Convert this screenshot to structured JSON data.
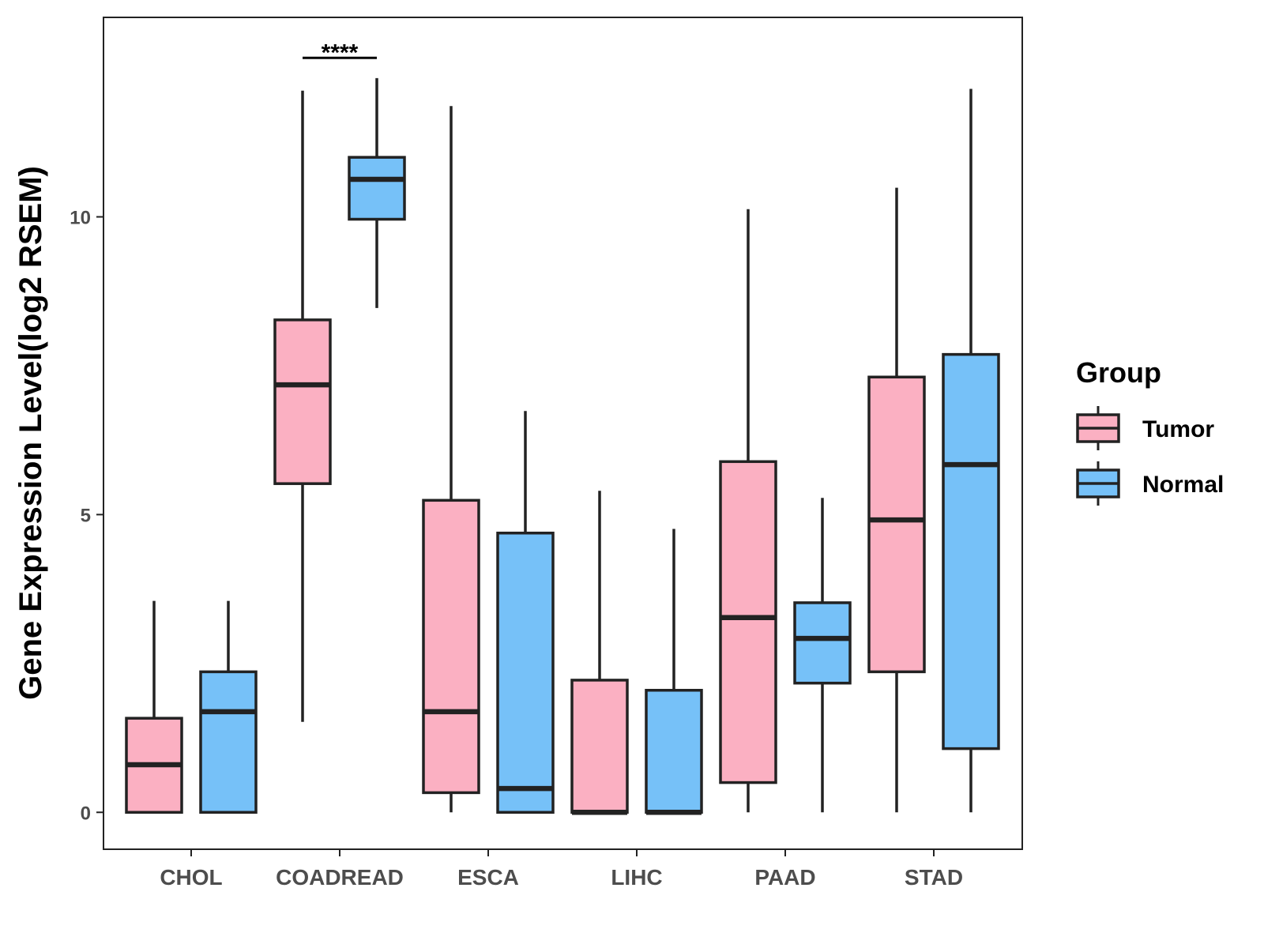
{
  "chart_data": {
    "type": "boxplot",
    "title": "",
    "xlabel": "",
    "ylabel": "Gene Expression Level(log2 RSEM)",
    "ylim": [
      -0.62,
      13.35
    ],
    "yticks": [
      0,
      5,
      10
    ],
    "grid": false,
    "categories": [
      "CHOL",
      "COADREAD",
      "ESCA",
      "LIHC",
      "PAAD",
      "STAD"
    ],
    "legend": {
      "title": "Group",
      "position": "right",
      "entries": [
        {
          "name": "Tumor",
          "color": "#fbb0c2"
        },
        {
          "name": "Normal",
          "color": "#76c1f8"
        }
      ]
    },
    "series": [
      {
        "name": "Tumor",
        "color": "#fbb0c2",
        "boxes": [
          {
            "min": 0.0,
            "q1": 0.0,
            "median": 0.8,
            "q3": 1.58,
            "max": 3.55
          },
          {
            "min": 1.52,
            "q1": 5.52,
            "median": 7.18,
            "q3": 8.27,
            "max": 12.12
          },
          {
            "min": 0.0,
            "q1": 0.33,
            "median": 1.69,
            "q3": 5.24,
            "max": 11.86
          },
          {
            "min": 0.0,
            "q1": 0.0,
            "median": 0.0,
            "q3": 2.22,
            "max": 5.4
          },
          {
            "min": 0.0,
            "q1": 0.5,
            "median": 3.27,
            "q3": 5.89,
            "max": 10.13
          },
          {
            "min": 0.0,
            "q1": 2.36,
            "median": 4.91,
            "q3": 7.31,
            "max": 10.49
          }
        ]
      },
      {
        "name": "Normal",
        "color": "#76c1f8",
        "boxes": [
          {
            "min": 0.0,
            "q1": 0.0,
            "median": 1.69,
            "q3": 2.36,
            "max": 3.55
          },
          {
            "min": 8.47,
            "q1": 9.96,
            "median": 10.63,
            "q3": 11.0,
            "max": 12.33
          },
          {
            "min": 0.0,
            "q1": 0.0,
            "median": 0.4,
            "q3": 4.69,
            "max": 6.74
          },
          {
            "min": 0.0,
            "q1": 0.0,
            "median": 0.0,
            "q3": 2.05,
            "max": 4.76
          },
          {
            "min": 0.0,
            "q1": 2.17,
            "median": 2.92,
            "q3": 3.52,
            "max": 5.28
          },
          {
            "min": 0.0,
            "q1": 1.07,
            "median": 5.84,
            "q3": 7.69,
            "max": 12.15
          }
        ]
      }
    ],
    "annotations": [
      {
        "category": "COADREAD",
        "text": "****",
        "y": 12.67
      }
    ]
  }
}
